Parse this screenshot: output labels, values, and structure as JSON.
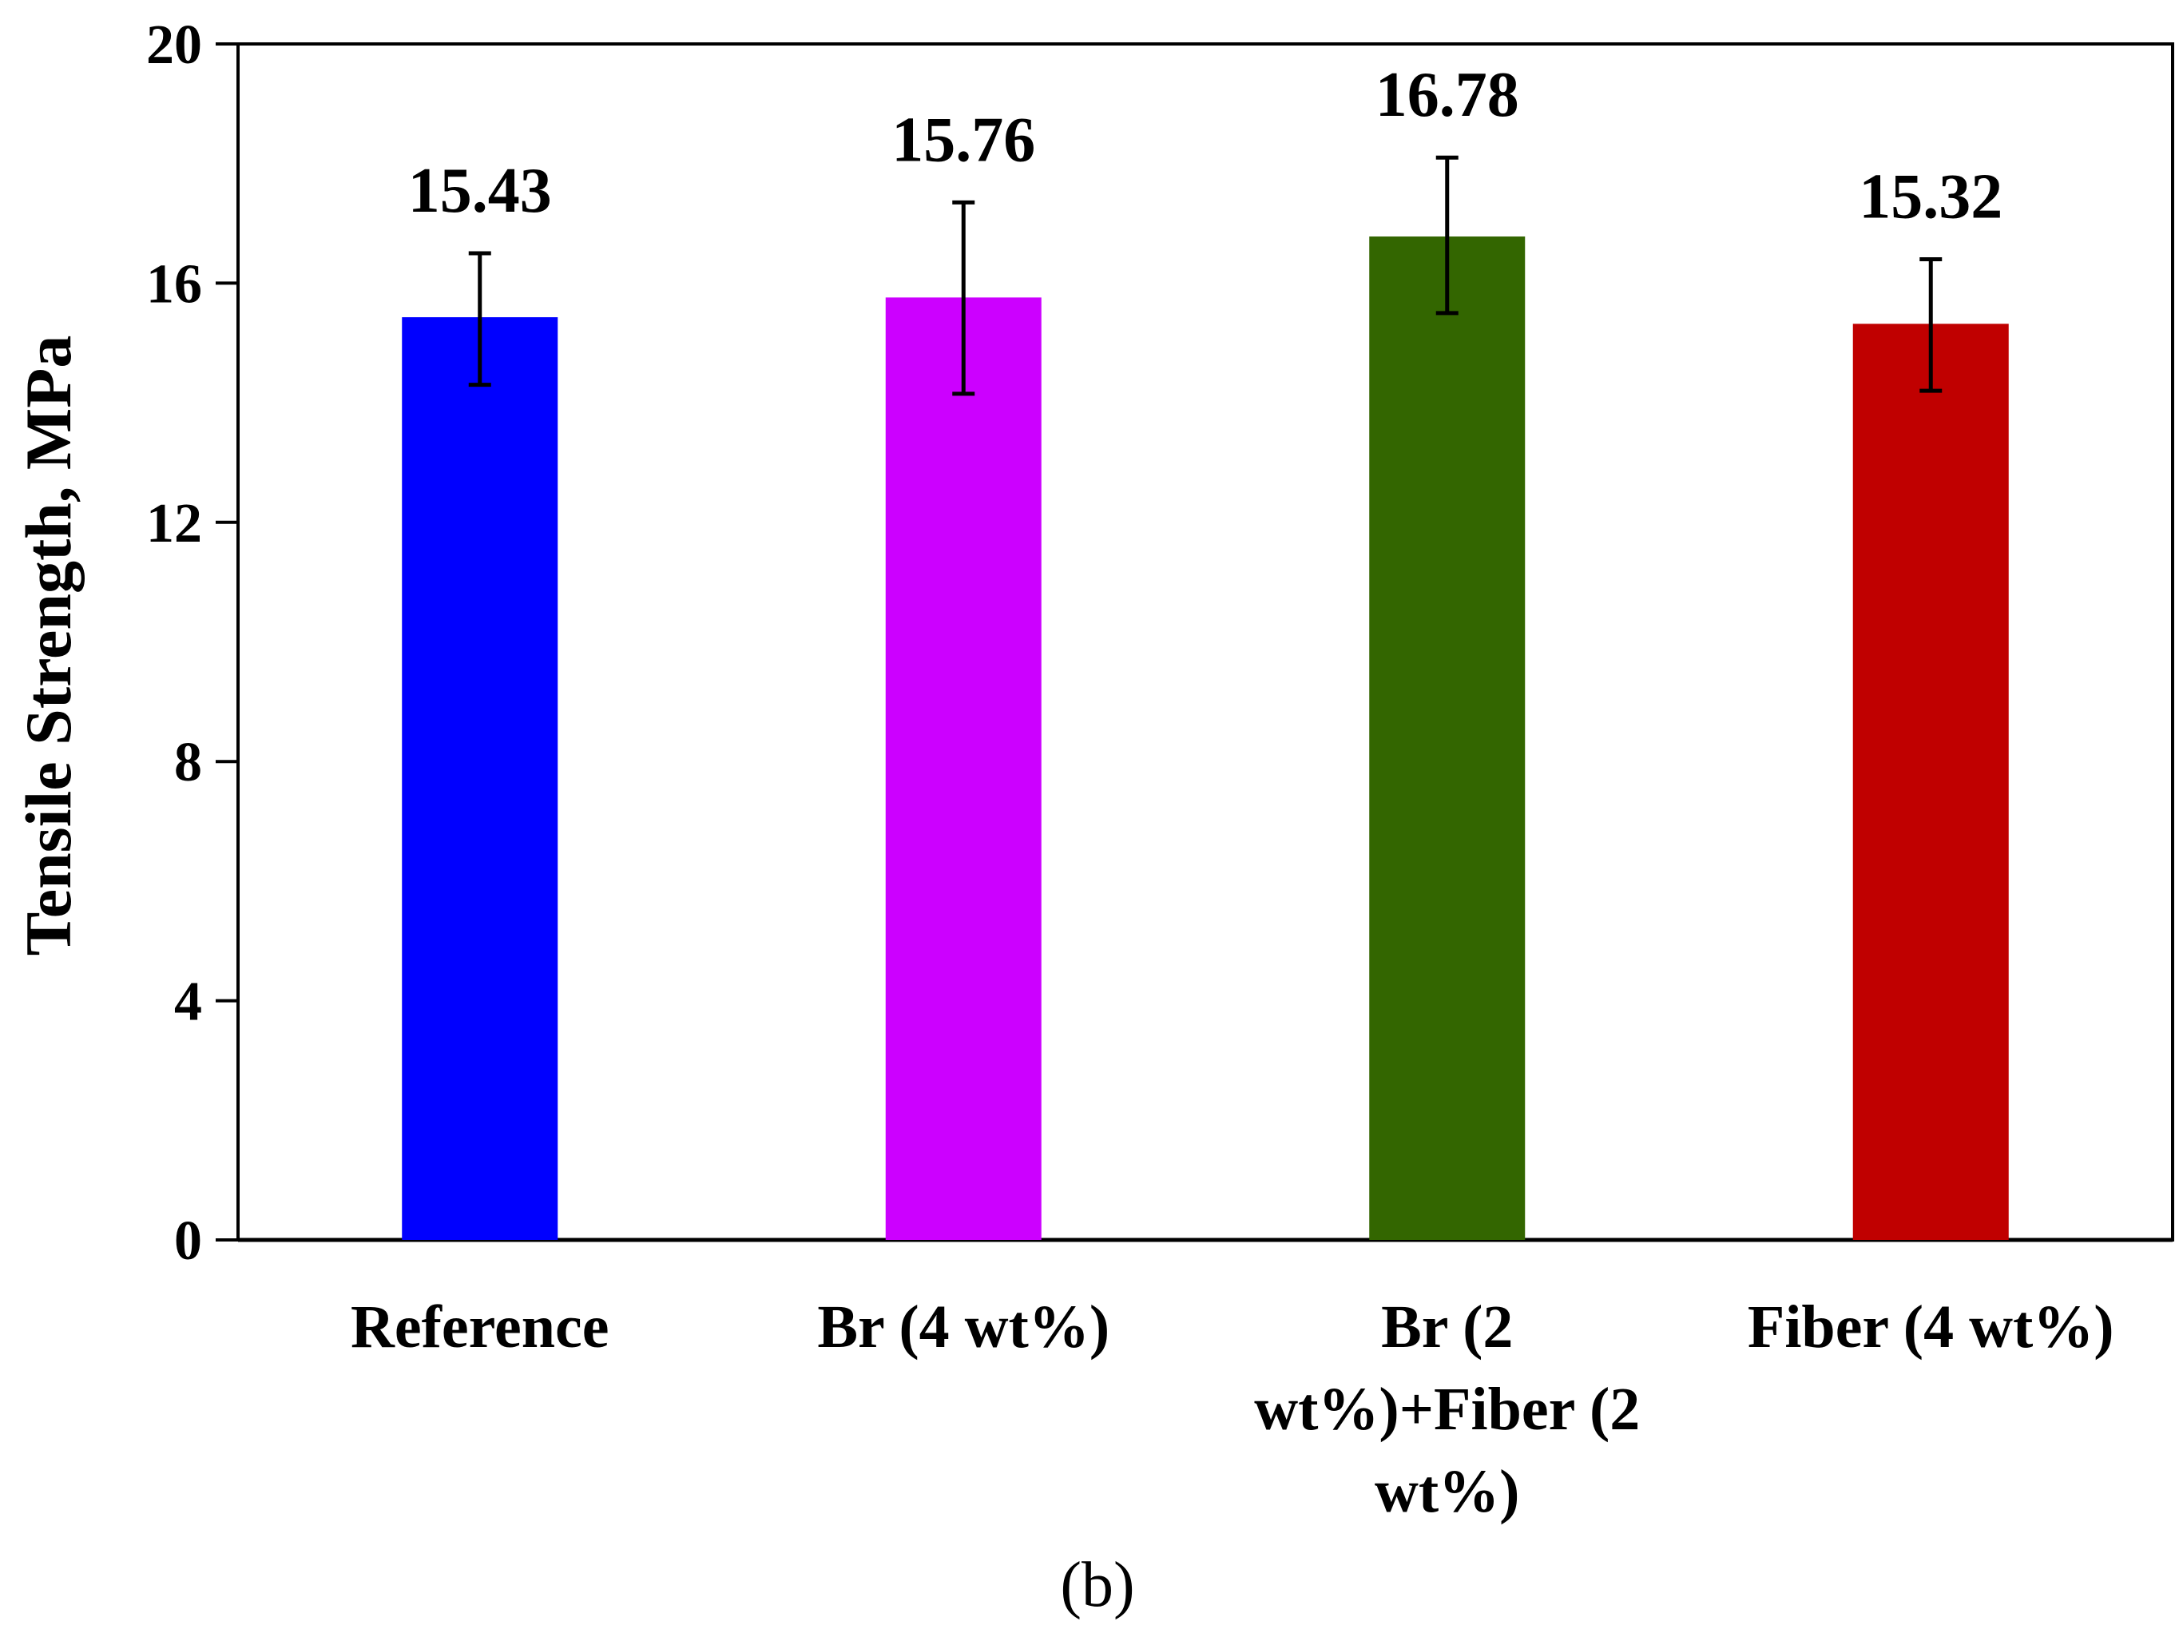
{
  "chart_data": {
    "type": "bar",
    "title": "",
    "xlabel": "",
    "ylabel": "Tensile Strength, MPa",
    "ylim": [
      0,
      20
    ],
    "yticks": [
      0,
      4,
      8,
      12,
      16,
      20
    ],
    "grid": false,
    "legend": "none",
    "categories": [
      [
        "Reference"
      ],
      [
        "Br (4 wt%)"
      ],
      [
        "Br (2",
        "wt%)+Fiber (2",
        "wt%)"
      ],
      [
        "Fiber (4 wt%)"
      ]
    ],
    "values": [
      15.43,
      15.76,
      16.78,
      15.32
    ],
    "value_labels": [
      "15.43",
      "15.76",
      "16.78",
      "15.32"
    ],
    "error_bars": [
      {
        "low": 14.3,
        "high": 16.5
      },
      {
        "low": 14.15,
        "high": 17.35
      },
      {
        "low": 15.5,
        "high": 18.1
      },
      {
        "low": 14.2,
        "high": 16.4
      }
    ],
    "colors": [
      "#0000ff",
      "#cc00ff",
      "#336600",
      "#c00000"
    ],
    "panel_label": "(b)"
  }
}
